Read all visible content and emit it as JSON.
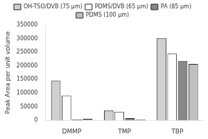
{
  "chart_data": {
    "type": "bar",
    "categories": [
      "DMMP",
      "TMP",
      "TBP"
    ],
    "series": [
      {
        "name": "OH-TSO/DVB (75 μm)",
        "color": "#d0d0d0",
        "values": [
          145000,
          37000,
          302000
        ]
      },
      {
        "name": "PDMS/DVB (65 μm)",
        "color": "#ffffff",
        "values": [
          91000,
          32000,
          245000
        ]
      },
      {
        "name": "PA (85 μm)",
        "color": "#888888",
        "values": [
          4000,
          8000,
          218000
        ]
      },
      {
        "name": "PDMS (100 μm)",
        "color": "#c0c0c0",
        "values": [
          5500,
          4000,
          207000
        ]
      }
    ],
    "ylabel": "Peak Area per unit volume",
    "ylim": [
      0,
      350000
    ],
    "yticks": [
      0,
      50000,
      100000,
      150000,
      200000,
      250000,
      300000,
      350000
    ],
    "grid": false,
    "legend": "top"
  }
}
